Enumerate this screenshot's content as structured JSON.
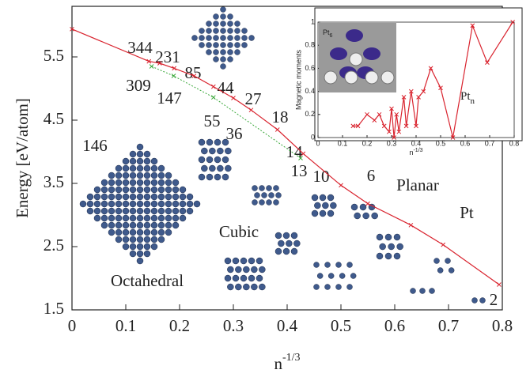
{
  "chart_data": [
    {
      "type": "line",
      "ylabel": "Energy [eV/atom]",
      "xlabel": {
        "base": "n",
        "sup": "-1/3"
      },
      "xlim": [
        0,
        0.8
      ],
      "xticks": [
        0,
        0.1,
        0.2,
        0.3,
        0.4,
        0.5,
        0.6,
        0.7,
        0.8
      ],
      "ylim": [
        1.5,
        6.3
      ],
      "yticks": [
        1.5,
        2.5,
        3.5,
        4.5,
        5.5
      ],
      "series": [
        {
          "color": "#d9232e",
          "style": "solid",
          "x": [
            0,
            0.143,
            0.163,
            0.19,
            0.227,
            0.263,
            0.3,
            0.333,
            0.382,
            0.43,
            0.5,
            0.55,
            0.63,
            0.69,
            0.794
          ],
          "values": [
            5.94,
            5.43,
            5.4,
            5.32,
            5.2,
            5.03,
            4.85,
            4.66,
            4.35,
            3.97,
            3.47,
            3.18,
            2.84,
            2.53,
            1.9
          ]
        },
        {
          "color": "#3aa83a",
          "style": "dotted",
          "x": [
            0.148,
            0.189,
            0.263,
            0.425
          ],
          "values": [
            5.35,
            5.2,
            4.86,
            3.9
          ]
        }
      ],
      "annotations": [
        "344",
        "231",
        "309",
        "147",
        "85",
        "44",
        "27",
        "55",
        "36",
        "18",
        "14",
        "13",
        "10",
        "6",
        "2",
        "146",
        "Octahedral",
        "Cubic",
        "Planar",
        "Pt"
      ]
    },
    {
      "type": "line",
      "ylabel": "Magnetic moments",
      "xlabel": {
        "base": "n",
        "sup": "-1/3"
      },
      "xlim": [
        0,
        0.8
      ],
      "xticks": [
        0,
        0.1,
        0.2,
        0.3,
        0.4,
        0.5,
        0.6,
        0.7,
        0.8
      ],
      "ylim": [
        0,
        1
      ],
      "yticks": [
        0,
        0.2,
        0.4,
        0.6,
        0.8,
        1
      ],
      "image_label": {
        "text": "Pt",
        "sub": "6"
      },
      "series_label": {
        "text": "Pt",
        "sub": "n"
      },
      "series": [
        {
          "color": "#d9232e",
          "style": "solid",
          "x": [
            0.143,
            0.163,
            0.2,
            0.23,
            0.25,
            0.27,
            0.29,
            0.3,
            0.31,
            0.32,
            0.33,
            0.35,
            0.36,
            0.38,
            0.4,
            0.41,
            0.43,
            0.46,
            0.5,
            0.55,
            0.63,
            0.69,
            0.794
          ],
          "values": [
            0.1,
            0.1,
            0.2,
            0.15,
            0.2,
            0.1,
            0.05,
            0.25,
            0,
            0.2,
            0.05,
            0.35,
            0.1,
            0.4,
            0.1,
            0.35,
            0.4,
            0.6,
            0.43,
            0,
            0.97,
            0.65,
            1
          ]
        }
      ]
    }
  ]
}
